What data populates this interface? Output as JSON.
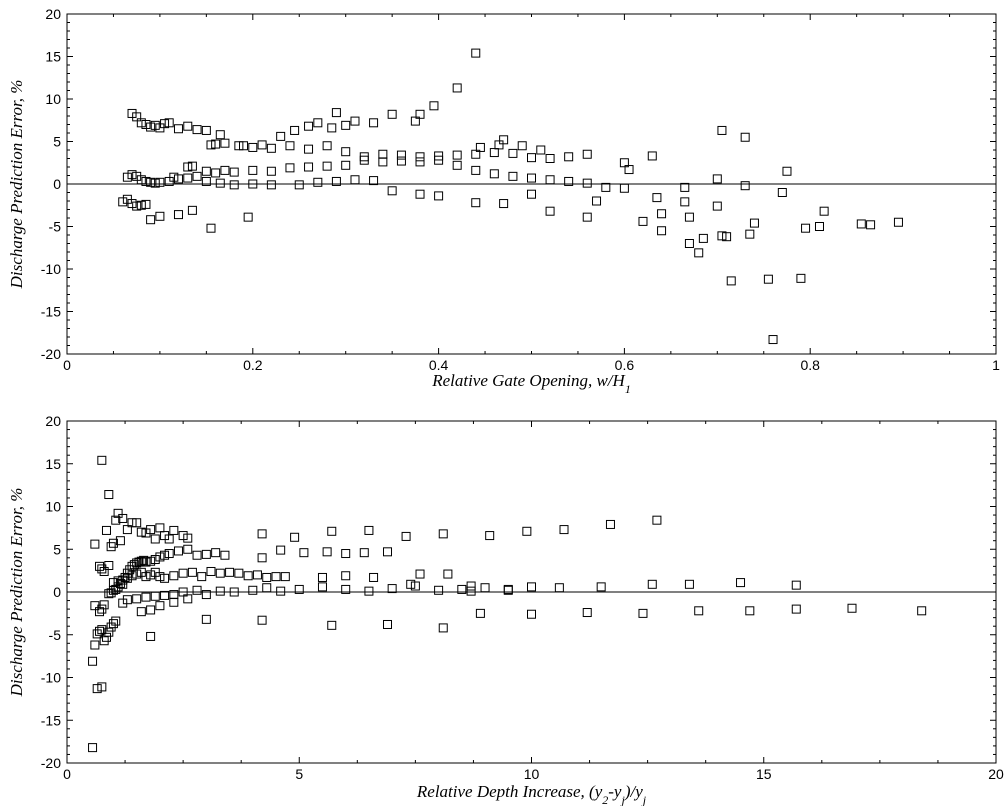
{
  "chart_data": [
    {
      "type": "scatter",
      "marker": "open-square",
      "xlabel": "Relative Gate Opening, w/H",
      "xlabel_subscript": "1",
      "ylabel": "Discharge Prediction Error, %",
      "xlim": [
        0,
        1
      ],
      "ylim": [
        -20,
        20
      ],
      "xticks": [
        "0",
        "0.2",
        "0.4",
        "0.6",
        "0.8",
        "1"
      ],
      "xtick_values": [
        0,
        0.2,
        0.4,
        0.6,
        0.8,
        1
      ],
      "yticks": [
        "-20",
        "-15",
        "-10",
        "-5",
        "0",
        "5",
        "10",
        "15",
        "20"
      ],
      "ytick_values": [
        -20,
        -15,
        -10,
        -5,
        0,
        5,
        10,
        15,
        20
      ],
      "reference_line_y": 0,
      "grid": false,
      "points": [
        [
          0.07,
          8.3
        ],
        [
          0.075,
          7.9
        ],
        [
          0.08,
          7.2
        ],
        [
          0.085,
          7.0
        ],
        [
          0.09,
          6.7
        ],
        [
          0.095,
          6.9
        ],
        [
          0.1,
          6.6
        ],
        [
          0.105,
          7.1
        ],
        [
          0.11,
          7.2
        ],
        [
          0.12,
          6.5
        ],
        [
          0.13,
          6.8
        ],
        [
          0.14,
          6.4
        ],
        [
          0.15,
          6.3
        ],
        [
          0.165,
          5.8
        ],
        [
          0.185,
          4.5
        ],
        [
          0.2,
          4.3
        ],
        [
          0.22,
          4.2
        ],
        [
          0.24,
          4.5
        ],
        [
          0.26,
          4.1
        ],
        [
          0.28,
          4.5
        ],
        [
          0.3,
          3.8
        ],
        [
          0.32,
          3.2
        ],
        [
          0.34,
          3.5
        ],
        [
          0.36,
          3.4
        ],
        [
          0.38,
          3.2
        ],
        [
          0.4,
          2.8
        ],
        [
          0.42,
          2.2
        ],
        [
          0.44,
          1.6
        ],
        [
          0.46,
          1.2
        ],
        [
          0.48,
          0.9
        ],
        [
          0.5,
          0.7
        ],
        [
          0.52,
          0.5
        ],
        [
          0.54,
          0.3
        ],
        [
          0.56,
          0.1
        ],
        [
          0.58,
          -0.4
        ],
        [
          0.065,
          0.8
        ],
        [
          0.07,
          1.1
        ],
        [
          0.075,
          0.9
        ],
        [
          0.08,
          0.5
        ],
        [
          0.085,
          0.3
        ],
        [
          0.09,
          0.2
        ],
        [
          0.095,
          0.1
        ],
        [
          0.1,
          0.2
        ],
        [
          0.11,
          0.3
        ],
        [
          0.115,
          0.8
        ],
        [
          0.12,
          0.6
        ],
        [
          0.13,
          0.7
        ],
        [
          0.14,
          0.9
        ],
        [
          0.15,
          1.5
        ],
        [
          0.16,
          1.3
        ],
        [
          0.17,
          1.6
        ],
        [
          0.18,
          1.4
        ],
        [
          0.2,
          1.6
        ],
        [
          0.22,
          1.5
        ],
        [
          0.24,
          1.9
        ],
        [
          0.26,
          2.0
        ],
        [
          0.28,
          2.1
        ],
        [
          0.3,
          2.2
        ],
        [
          0.32,
          2.8
        ],
        [
          0.34,
          2.6
        ],
        [
          0.36,
          2.7
        ],
        [
          0.38,
          2.6
        ],
        [
          0.4,
          3.3
        ],
        [
          0.42,
          3.4
        ],
        [
          0.44,
          3.5
        ],
        [
          0.46,
          3.7
        ],
        [
          0.48,
          3.6
        ],
        [
          0.5,
          3.1
        ],
        [
          0.52,
          3.0
        ],
        [
          0.54,
          3.2
        ],
        [
          0.56,
          3.5
        ],
        [
          0.63,
          3.3
        ],
        [
          0.13,
          2.0
        ],
        [
          0.135,
          2.1
        ],
        [
          0.155,
          4.6
        ],
        [
          0.16,
          4.7
        ],
        [
          0.17,
          4.8
        ],
        [
          0.19,
          4.5
        ],
        [
          0.21,
          4.6
        ],
        [
          0.23,
          5.6
        ],
        [
          0.245,
          6.3
        ],
        [
          0.26,
          6.8
        ],
        [
          0.27,
          7.2
        ],
        [
          0.285,
          6.6
        ],
        [
          0.29,
          8.4
        ],
        [
          0.3,
          6.9
        ],
        [
          0.31,
          7.4
        ],
        [
          0.33,
          7.2
        ],
        [
          0.35,
          8.2
        ],
        [
          0.375,
          7.4
        ],
        [
          0.38,
          8.2
        ],
        [
          0.395,
          9.2
        ],
        [
          0.42,
          11.3
        ],
        [
          0.44,
          15.4
        ],
        [
          0.445,
          4.3
        ],
        [
          0.465,
          4.6
        ],
        [
          0.47,
          5.2
        ],
        [
          0.49,
          4.5
        ],
        [
          0.51,
          4.0
        ],
        [
          0.06,
          -2.1
        ],
        [
          0.065,
          -1.8
        ],
        [
          0.07,
          -2.3
        ],
        [
          0.075,
          -2.6
        ],
        [
          0.08,
          -2.5
        ],
        [
          0.085,
          -2.4
        ],
        [
          0.09,
          -4.2
        ],
        [
          0.1,
          -3.8
        ],
        [
          0.12,
          -3.6
        ],
        [
          0.135,
          -3.1
        ],
        [
          0.155,
          -5.2
        ],
        [
          0.195,
          -3.9
        ],
        [
          0.15,
          0.3
        ],
        [
          0.165,
          0.1
        ],
        [
          0.18,
          -0.1
        ],
        [
          0.2,
          0.0
        ],
        [
          0.22,
          -0.1
        ],
        [
          0.25,
          -0.1
        ],
        [
          0.27,
          0.2
        ],
        [
          0.29,
          0.3
        ],
        [
          0.31,
          0.5
        ],
        [
          0.33,
          0.4
        ],
        [
          0.35,
          -0.8
        ],
        [
          0.38,
          -1.2
        ],
        [
          0.4,
          -1.4
        ],
        [
          0.44,
          -2.2
        ],
        [
          0.47,
          -2.3
        ],
        [
          0.5,
          -1.2
        ],
        [
          0.52,
          -3.2
        ],
        [
          0.56,
          -3.9
        ],
        [
          0.57,
          -2.0
        ],
        [
          0.6,
          -0.5
        ],
        [
          0.62,
          -4.4
        ],
        [
          0.6,
          2.5
        ],
        [
          0.605,
          1.7
        ],
        [
          0.635,
          -1.6
        ],
        [
          0.64,
          -3.5
        ],
        [
          0.64,
          -5.5
        ],
        [
          0.665,
          -0.4
        ],
        [
          0.67,
          -3.9
        ],
        [
          0.67,
          -7.0
        ],
        [
          0.68,
          -8.1
        ],
        [
          0.685,
          -6.4
        ],
        [
          0.7,
          0.6
        ],
        [
          0.7,
          -2.6
        ],
        [
          0.705,
          6.3
        ],
        [
          0.705,
          -6.1
        ],
        [
          0.71,
          -6.2
        ],
        [
          0.715,
          -11.4
        ],
        [
          0.73,
          -0.2
        ],
        [
          0.73,
          5.5
        ],
        [
          0.735,
          -5.9
        ],
        [
          0.74,
          -4.6
        ],
        [
          0.755,
          -11.2
        ],
        [
          0.76,
          -18.3
        ],
        [
          0.77,
          -1.0
        ],
        [
          0.775,
          1.5
        ],
        [
          0.79,
          -11.1
        ],
        [
          0.795,
          -5.2
        ],
        [
          0.81,
          -5.0
        ],
        [
          0.815,
          -3.2
        ],
        [
          0.855,
          -4.7
        ],
        [
          0.865,
          -4.8
        ],
        [
          0.895,
          -4.5
        ],
        [
          0.665,
          -2.1
        ]
      ]
    },
    {
      "type": "scatter",
      "marker": "open-square",
      "xlabel": "Relative Depth Increase, (y",
      "xlabel_sub1": "2",
      "xlabel_mid": "-y",
      "xlabel_sub2": "j",
      "xlabel_tail": ")/y",
      "xlabel_sub3": "j",
      "ylabel": "Discharge Prediction Error, %",
      "xlim": [
        0,
        20
      ],
      "ylim": [
        -20,
        20
      ],
      "xticks": [
        "0",
        "5",
        "10",
        "15",
        "20"
      ],
      "xtick_values": [
        0,
        5,
        10,
        15,
        20
      ],
      "yticks": [
        "-20",
        "-15",
        "-10",
        "-5",
        "0",
        "5",
        "10",
        "15",
        "20"
      ],
      "ytick_values": [
        -20,
        -15,
        -10,
        -5,
        0,
        5,
        10,
        15,
        20
      ],
      "reference_line_y": 0,
      "grid": false,
      "points": [
        [
          0.55,
          -18.2
        ],
        [
          0.65,
          -11.3
        ],
        [
          0.75,
          -11.1
        ],
        [
          0.55,
          -8.1
        ],
        [
          0.6,
          -6.2
        ],
        [
          0.65,
          -4.9
        ],
        [
          0.7,
          -4.6
        ],
        [
          0.75,
          -4.4
        ],
        [
          0.8,
          -5.7
        ],
        [
          0.85,
          -5.3
        ],
        [
          0.9,
          -4.7
        ],
        [
          0.95,
          -4.1
        ],
        [
          1.0,
          -3.7
        ],
        [
          1.05,
          -3.4
        ],
        [
          0.7,
          -2.3
        ],
        [
          0.75,
          -2.0
        ],
        [
          0.8,
          -1.5
        ],
        [
          0.6,
          -1.6
        ],
        [
          0.6,
          5.6
        ],
        [
          0.7,
          3.0
        ],
        [
          0.75,
          2.7
        ],
        [
          0.8,
          2.4
        ],
        [
          0.85,
          7.2
        ],
        [
          0.9,
          11.4
        ],
        [
          0.75,
          15.4
        ],
        [
          0.9,
          3.1
        ],
        [
          0.95,
          5.3
        ],
        [
          1.0,
          5.7
        ],
        [
          1.05,
          8.4
        ],
        [
          1.1,
          9.2
        ],
        [
          1.15,
          6.0
        ],
        [
          1.2,
          8.6
        ],
        [
          1.3,
          7.3
        ],
        [
          1.4,
          8.1
        ],
        [
          1.5,
          8.1
        ],
        [
          1.6,
          7.0
        ],
        [
          1.7,
          6.9
        ],
        [
          1.8,
          7.3
        ],
        [
          1.9,
          6.2
        ],
        [
          2.0,
          7.5
        ],
        [
          2.1,
          6.6
        ],
        [
          2.2,
          6.2
        ],
        [
          2.3,
          7.2
        ],
        [
          2.5,
          6.6
        ],
        [
          2.6,
          6.3
        ],
        [
          0.9,
          -0.2
        ],
        [
          0.95,
          -0.1
        ],
        [
          1.0,
          0.2
        ],
        [
          1.05,
          0.3
        ],
        [
          1.1,
          0.6
        ],
        [
          1.15,
          1.0
        ],
        [
          1.2,
          1.4
        ],
        [
          1.25,
          1.7
        ],
        [
          1.3,
          2.2
        ],
        [
          1.35,
          2.6
        ],
        [
          1.4,
          3.0
        ],
        [
          1.45,
          3.2
        ],
        [
          1.5,
          3.4
        ],
        [
          1.55,
          3.5
        ],
        [
          1.6,
          3.6
        ],
        [
          1.65,
          3.7
        ],
        [
          1.7,
          3.5
        ],
        [
          1.8,
          3.6
        ],
        [
          1.9,
          3.8
        ],
        [
          2.0,
          4.1
        ],
        [
          2.1,
          4.3
        ],
        [
          2.2,
          4.5
        ],
        [
          2.4,
          4.8
        ],
        [
          2.6,
          5.0
        ],
        [
          2.8,
          4.3
        ],
        [
          3.0,
          4.4
        ],
        [
          3.2,
          4.6
        ],
        [
          1.0,
          1.1
        ],
        [
          1.1,
          1.3
        ],
        [
          1.2,
          0.9
        ],
        [
          1.3,
          1.6
        ],
        [
          1.4,
          1.9
        ],
        [
          1.5,
          2.1
        ],
        [
          1.6,
          2.3
        ],
        [
          1.7,
          1.8
        ],
        [
          1.8,
          2.0
        ],
        [
          1.9,
          2.3
        ],
        [
          2.0,
          1.8
        ],
        [
          2.1,
          1.6
        ],
        [
          2.3,
          1.9
        ],
        [
          2.5,
          2.2
        ],
        [
          2.7,
          2.3
        ],
        [
          2.9,
          1.8
        ],
        [
          3.1,
          2.4
        ],
        [
          3.3,
          2.2
        ],
        [
          3.5,
          2.3
        ],
        [
          3.7,
          2.2
        ],
        [
          3.9,
          1.9
        ],
        [
          4.1,
          2.0
        ],
        [
          4.3,
          1.7
        ],
        [
          4.5,
          1.8
        ],
        [
          4.7,
          1.8
        ],
        [
          1.2,
          -1.3
        ],
        [
          1.3,
          -0.9
        ],
        [
          1.5,
          -0.8
        ],
        [
          1.7,
          -0.6
        ],
        [
          1.9,
          -0.5
        ],
        [
          2.1,
          -0.4
        ],
        [
          2.3,
          -0.3
        ],
        [
          2.5,
          0.0
        ],
        [
          2.8,
          0.2
        ],
        [
          3.0,
          -0.3
        ],
        [
          3.3,
          0.1
        ],
        [
          3.6,
          0.0
        ],
        [
          4.0,
          0.2
        ],
        [
          4.3,
          0.5
        ],
        [
          4.6,
          0.1
        ],
        [
          5.0,
          0.3
        ],
        [
          5.5,
          0.6
        ],
        [
          6.0,
          0.3
        ],
        [
          6.5,
          0.1
        ],
        [
          7.0,
          0.4
        ],
        [
          7.5,
          0.7
        ],
        [
          8.0,
          0.2
        ],
        [
          8.5,
          0.3
        ],
        [
          9.0,
          0.5
        ],
        [
          9.5,
          0.3
        ],
        [
          10.0,
          0.6
        ],
        [
          1.6,
          -2.3
        ],
        [
          1.8,
          -2.1
        ],
        [
          2.0,
          -1.6
        ],
        [
          2.3,
          -1.2
        ],
        [
          2.6,
          -0.8
        ],
        [
          3.0,
          -3.2
        ],
        [
          4.2,
          -3.3
        ],
        [
          5.7,
          -3.9
        ],
        [
          6.9,
          -3.8
        ],
        [
          8.1,
          -4.2
        ],
        [
          8.9,
          -2.5
        ],
        [
          10.0,
          -2.6
        ],
        [
          11.2,
          -2.4
        ],
        [
          12.4,
          -2.5
        ],
        [
          13.6,
          -2.2
        ],
        [
          14.7,
          -2.2
        ],
        [
          15.7,
          -2.0
        ],
        [
          16.9,
          -1.9
        ],
        [
          18.4,
          -2.2
        ],
        [
          1.8,
          -5.2
        ],
        [
          4.2,
          6.8
        ],
        [
          4.9,
          6.4
        ],
        [
          5.7,
          7.1
        ],
        [
          6.5,
          7.2
        ],
        [
          7.3,
          6.5
        ],
        [
          8.1,
          6.8
        ],
        [
          9.1,
          6.6
        ],
        [
          9.9,
          7.1
        ],
        [
          10.7,
          7.3
        ],
        [
          11.7,
          7.9
        ],
        [
          12.7,
          8.4
        ],
        [
          3.4,
          4.3
        ],
        [
          4.2,
          4.0
        ],
        [
          4.6,
          4.9
        ],
        [
          5.1,
          4.6
        ],
        [
          5.6,
          4.7
        ],
        [
          6.0,
          4.5
        ],
        [
          6.4,
          4.6
        ],
        [
          6.9,
          4.7
        ],
        [
          7.6,
          2.1
        ],
        [
          8.2,
          2.1
        ],
        [
          8.7,
          0.7
        ],
        [
          9.5,
          0.2
        ],
        [
          10.6,
          0.5
        ],
        [
          11.5,
          0.6
        ],
        [
          12.6,
          0.9
        ],
        [
          13.4,
          0.9
        ],
        [
          14.5,
          1.1
        ],
        [
          15.7,
          0.8
        ],
        [
          8.7,
          0.1
        ],
        [
          5.5,
          1.7
        ],
        [
          6.0,
          1.9
        ],
        [
          6.6,
          1.7
        ],
        [
          7.4,
          0.9
        ]
      ]
    }
  ]
}
